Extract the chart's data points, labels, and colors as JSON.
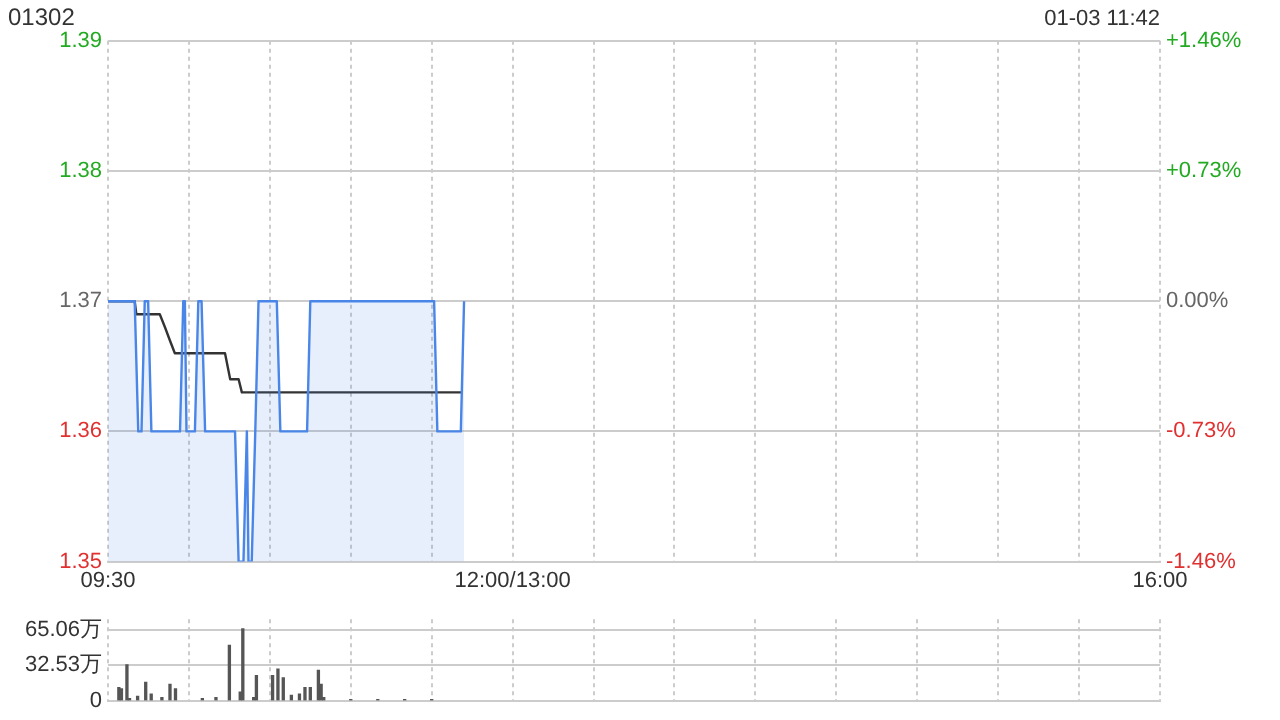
{
  "chart_data": [
    {
      "type": "line",
      "title": "01302",
      "annotations": [
        "01-03 11:42"
      ],
      "xlim": [
        9.5,
        16
      ],
      "xticks": [
        {
          "value": 9.5,
          "label": "09:30"
        },
        {
          "value": 10,
          "label": null
        },
        {
          "value": 10.5,
          "label": null
        },
        {
          "value": 11,
          "label": null
        },
        {
          "value": 11.5,
          "label": null
        },
        {
          "value": 12,
          "label": "12:00/13:00"
        },
        {
          "value": 12.5,
          "label": null
        },
        {
          "value": 13,
          "label": null
        },
        {
          "value": 13.5,
          "label": null
        },
        {
          "value": 14,
          "label": null
        },
        {
          "value": 14.5,
          "label": null
        },
        {
          "value": 15,
          "label": null
        },
        {
          "value": 15.5,
          "label": null
        },
        {
          "value": 16,
          "label": "16:00"
        }
      ],
      "ylim": [
        1.35,
        1.39
      ],
      "yticks": [
        1.35,
        1.36,
        1.37,
        1.38,
        1.39
      ],
      "y2lim": [
        -1.46,
        1.46
      ],
      "y2ticks": [
        {
          "value": -1.46,
          "label": "-1.46%"
        },
        {
          "value": -0.73,
          "label": "-0.73%"
        },
        {
          "value": 0,
          "label": "0.00%"
        },
        {
          "value": 0.73,
          "label": "+0.73%"
        },
        {
          "value": 1.46,
          "label": "+1.46%"
        }
      ],
      "grid": true,
      "legend": false,
      "marker": "none",
      "series": [
        {
          "type": "area",
          "color": "#4a86e8",
          "x": [
            9.5,
            9.665,
            9.687,
            9.707,
            9.727,
            9.748,
            9.768,
            9.945,
            9.965,
            9.975,
            9.985,
            10.037,
            10.058,
            10.078,
            10.1,
            10.285,
            10.307,
            10.337,
            10.358,
            10.368,
            10.388,
            10.41,
            10.43,
            10.543,
            10.565,
            10.73,
            10.75,
            11.515,
            11.535,
            11.68,
            11.7
          ],
          "values": [
            1.37,
            1.37,
            1.36,
            1.36,
            1.37,
            1.37,
            1.36,
            1.36,
            1.37,
            1.37,
            1.36,
            1.36,
            1.37,
            1.37,
            1.36,
            1.36,
            1.35,
            1.35,
            1.36,
            1.35,
            1.35,
            1.36,
            1.37,
            1.37,
            1.36,
            1.36,
            1.37,
            1.37,
            1.36,
            1.36,
            1.37
          ]
        },
        {
          "type": "line",
          "color": "#333333",
          "x": [
            9.5,
            9.665,
            9.675,
            9.82,
            9.852,
            9.882,
            9.913,
            10.223,
            10.255,
            10.307,
            10.327,
            11.69
          ],
          "values": [
            1.37,
            1.37,
            1.369,
            1.369,
            1.368,
            1.367,
            1.366,
            1.366,
            1.364,
            1.364,
            1.363,
            1.363
          ]
        }
      ]
    },
    {
      "type": "bar",
      "tick_labels": "y",
      "grid": true,
      "legend": false,
      "xlim": [
        9.5,
        16
      ],
      "xticks": [
        {
          "value": 9.5,
          "label": null
        },
        {
          "value": 10,
          "label": null
        },
        {
          "value": 10.5,
          "label": null
        },
        {
          "value": 11,
          "label": null
        },
        {
          "value": 11.5,
          "label": null
        },
        {
          "value": 12,
          "label": null
        },
        {
          "value": 12.5,
          "label": null
        },
        {
          "value": 13,
          "label": null
        },
        {
          "value": 13.5,
          "label": null
        },
        {
          "value": 14,
          "label": null
        },
        {
          "value": 14.5,
          "label": null
        },
        {
          "value": 15,
          "label": null
        },
        {
          "value": 15.5,
          "label": null
        },
        {
          "value": 16,
          "label": null
        }
      ],
      "ylim": [
        0,
        75
      ],
      "yticks": [
        0,
        {
          "value": 32.53,
          "label": "32.53万"
        },
        {
          "value": 65.06,
          "label": "65.06万"
        }
      ],
      "x": [
        9.567,
        9.583,
        9.617,
        9.633,
        9.683,
        9.733,
        9.767,
        9.833,
        9.883,
        9.917,
        10.083,
        10.167,
        10.25,
        10.317,
        10.333,
        10.4,
        10.417,
        10.517,
        10.55,
        10.583,
        10.633,
        10.683,
        10.717,
        10.75,
        10.8,
        10.817,
        10.833,
        11,
        11.167,
        11.333,
        11.5
      ],
      "values": [
        12,
        11,
        33,
        2,
        4,
        17,
        6,
        3,
        15,
        11,
        2,
        3,
        51,
        8,
        66,
        3,
        23,
        23,
        29,
        21,
        5,
        6,
        12,
        12,
        28,
        15,
        3,
        1,
        1,
        1,
        1
      ],
      "color": "#555555"
    }
  ]
}
